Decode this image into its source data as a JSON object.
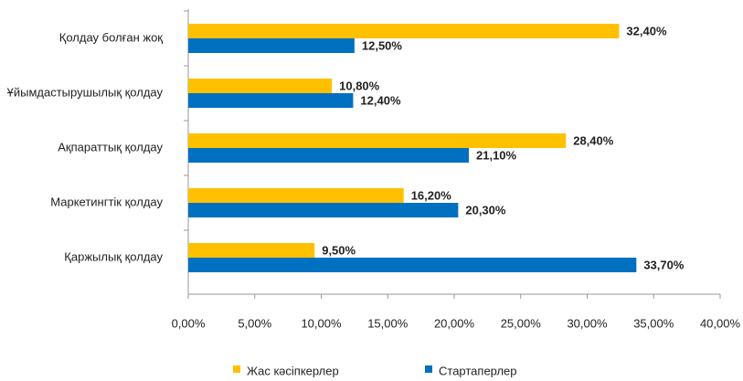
{
  "chart_data": {
    "type": "hbar",
    "categories": [
      "Қолдау болған жоқ",
      "Ұйымдастырушылық қолдау",
      "Ақпараттық қолдау",
      "Маркетингтік қолдау",
      "Қаржылық қолдау"
    ],
    "series": [
      {
        "name": "Жас кәсіпкерлер",
        "color": "#FFC000",
        "values": [
          32.4,
          10.8,
          28.4,
          16.2,
          9.5
        ],
        "value_labels": [
          "32,40%",
          "10,80%",
          "28,40%",
          "16,20%",
          "9,50%"
        ]
      },
      {
        "name": "Стартаперлер",
        "color": "#0070C0",
        "values": [
          12.5,
          12.4,
          21.1,
          20.3,
          33.7
        ],
        "value_labels": [
          "12,50%",
          "12,40%",
          "21,10%",
          "20,30%",
          "33,70%"
        ]
      }
    ],
    "xlim": [
      0,
      40
    ],
    "xticks": [
      {
        "value": 0,
        "label": "0,00%"
      },
      {
        "value": 5,
        "label": "5,00%"
      },
      {
        "value": 10,
        "label": "10,00%"
      },
      {
        "value": 15,
        "label": "15,00%"
      },
      {
        "value": 20,
        "label": "20,00%"
      },
      {
        "value": 25,
        "label": "25,00%"
      },
      {
        "value": 30,
        "label": "30,00%"
      },
      {
        "value": 35,
        "label": "35,00%"
      },
      {
        "value": 40,
        "label": "40,00%"
      }
    ],
    "legend": "bottom"
  }
}
